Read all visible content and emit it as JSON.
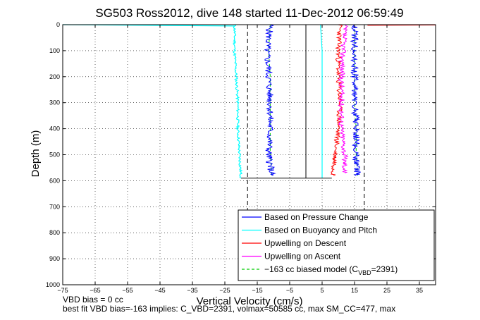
{
  "chart_data": {
    "type": "line",
    "title": "SG503 Ross2012, dive 148 started 11-Dec-2012 06:59:49",
    "xlabel": "Vertical Velocity (cm/s)",
    "ylabel": "Depth (m)",
    "xlim": [
      -75,
      40
    ],
    "ylim": [
      1000,
      0
    ],
    "x_ticks": [
      -75,
      -65,
      -55,
      -45,
      -35,
      -25,
      -15,
      -5,
      5,
      15,
      25,
      35
    ],
    "y_ticks": [
      0,
      100,
      200,
      300,
      400,
      500,
      600,
      700,
      800,
      900,
      1000
    ],
    "grid": true,
    "legend_position": "bottom-right",
    "series": [
      {
        "name": "Based on Pressure Change",
        "color": "#0000ff",
        "style": "solid",
        "descent": {
          "depth": [
            0,
            100,
            200,
            300,
            400,
            500,
            580
          ],
          "velocity": [
            -11,
            -12,
            -11.5,
            -11,
            -11,
            -11.5,
            -10.5
          ]
        },
        "ascent": {
          "depth": [
            580,
            500,
            400,
            300,
            200,
            100,
            0
          ],
          "velocity": [
            16,
            15.5,
            15.5,
            15,
            15,
            15,
            15
          ]
        }
      },
      {
        "name": "Based on Buoyancy and Pitch",
        "color": "#00ffff",
        "style": "solid",
        "descent": {
          "depth": [
            0,
            100,
            200,
            300,
            400,
            500,
            590
          ],
          "velocity": [
            -22,
            -22,
            -21.5,
            -21,
            -21,
            -20.5,
            -20
          ]
        },
        "ascent": {
          "depth": [
            590,
            500,
            400,
            300,
            200,
            100,
            0
          ],
          "velocity": [
            5,
            5,
            5,
            5,
            5,
            5,
            4.5
          ]
        }
      },
      {
        "name": "Upwelling on Descent",
        "color": "#ff0000",
        "style": "solid",
        "depth": [
          0,
          100,
          200,
          300,
          400,
          500,
          580
        ],
        "velocity": [
          10.5,
          10,
          10,
          10.5,
          10,
          9,
          8.5
        ]
      },
      {
        "name": "Upwelling on Ascent",
        "color": "#ff00ff",
        "style": "solid",
        "depth": [
          0,
          100,
          200,
          300,
          400,
          500,
          570
        ],
        "velocity": [
          12,
          11.5,
          11,
          11,
          11,
          12,
          12
        ]
      },
      {
        "name": "−163 cc biased model (C_VBD=2391)",
        "legend_main": "−163 cc biased model (C",
        "legend_sub": "VBD",
        "legend_tail": "=2391)",
        "color": "#00cc00",
        "style": "dashed",
        "descent": {
          "depth": [
            0,
            100,
            200,
            300,
            400,
            500,
            580
          ],
          "velocity": [
            -11,
            -11.5,
            -11,
            -11,
            -11,
            -11,
            -10.5
          ]
        },
        "ascent": {
          "depth": [
            580,
            500,
            400,
            300,
            200,
            100,
            0
          ],
          "velocity": [
            16,
            15.5,
            15.5,
            15,
            15,
            15,
            15
          ]
        }
      }
    ],
    "reference_lines": {
      "vertical_solid": [
        0
      ],
      "vertical_dashed": [
        -18,
        18
      ],
      "horizontal_line_depth": 590
    }
  },
  "footer": {
    "line1": "VBD bias = 0 cc",
    "line2": "best fit VBD bias=-163 implies: C_VBD=2391, volmax=50585 cc, max SM_CC=477, max"
  }
}
